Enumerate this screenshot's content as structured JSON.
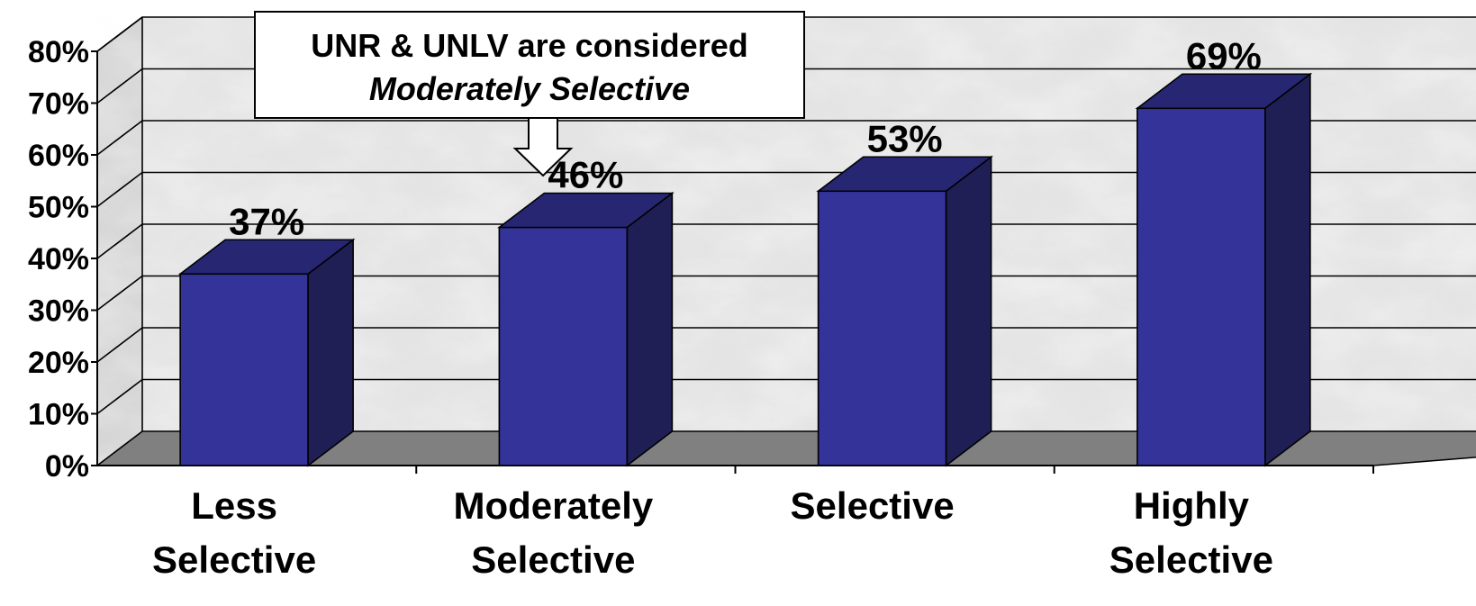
{
  "chart_data": {
    "type": "bar",
    "categories": [
      [
        "Less",
        "Selective"
      ],
      [
        "Moderately",
        "Selective"
      ],
      [
        "Selective"
      ],
      [
        "Highly",
        "Selective"
      ]
    ],
    "values": [
      37,
      46,
      53,
      69
    ],
    "value_labels": [
      "37%",
      "46%",
      "53%",
      "69%"
    ],
    "y_tick_labels": [
      "0%",
      "10%",
      "20%",
      "30%",
      "40%",
      "50%",
      "60%",
      "70%",
      "80%"
    ],
    "ylim": [
      0,
      80
    ],
    "grid": true,
    "three_d": true,
    "annotation": {
      "line1": "UNR & UNLV are considered",
      "line2": "Moderately Selective",
      "points_to_category": "Moderately Selective"
    }
  },
  "colors": {
    "bar_front": "#333399",
    "bar_top": "#262673",
    "bar_side": "#1f1f55",
    "floor": "#808080",
    "wall": "#e4e4e4",
    "gridline": "#000000"
  }
}
